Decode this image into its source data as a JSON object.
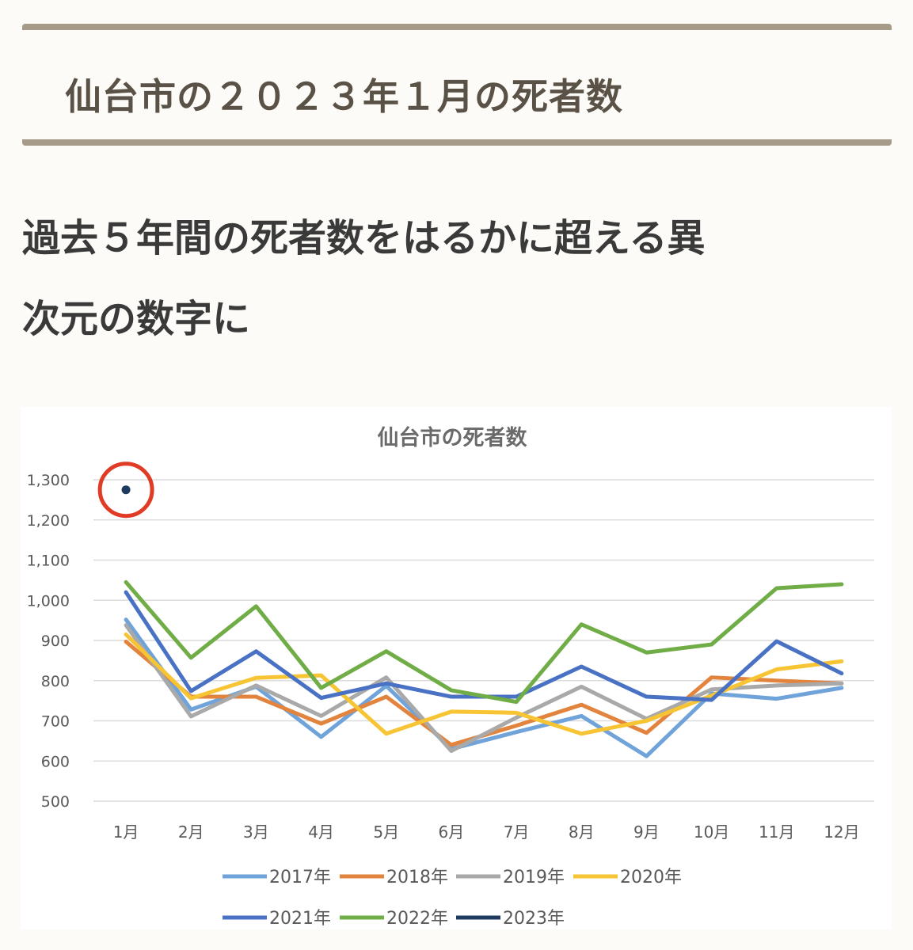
{
  "heading": {
    "title": "仙台市の２０２３年１月の死者数"
  },
  "lead": {
    "line1": "過去５年間の死者数をはるかに超える異",
    "line2": "次元の数字に"
  },
  "colors": {
    "2017年": "#6fa3d9",
    "2018年": "#e2843d",
    "2019年": "#a9a9a9",
    "2020年": "#f7c433",
    "2021年": "#4a72c4",
    "2022年": "#71ad47",
    "2023年": "#1f3a5f",
    "highlight": "#e03b24"
  },
  "chart_data": {
    "type": "line",
    "title": "仙台市の死者数",
    "categories": [
      "1月",
      "2月",
      "3月",
      "4月",
      "5月",
      "6月",
      "7月",
      "8月",
      "9月",
      "10月",
      "11月",
      "12月"
    ],
    "yticks": [
      "1,300",
      "1,200",
      "1,100",
      "1,000",
      "900",
      "800",
      "700",
      "600",
      "500"
    ],
    "ylim": [
      500,
      1300
    ],
    "grid": true,
    "legend_position": "bottom",
    "series": [
      {
        "name": "2017年",
        "values": [
          952,
          728,
          785,
          660,
          787,
          630,
          672,
          712,
          612,
          768,
          755,
          782
        ]
      },
      {
        "name": "2018年",
        "values": [
          897,
          760,
          760,
          693,
          760,
          640,
          688,
          740,
          670,
          808,
          800,
          793
        ]
      },
      {
        "name": "2019年",
        "values": [
          938,
          711,
          788,
          712,
          808,
          625,
          708,
          785,
          705,
          778,
          788,
          793
        ]
      },
      {
        "name": "2020年",
        "values": [
          915,
          756,
          807,
          813,
          668,
          723,
          720,
          668,
          700,
          763,
          828,
          848
        ]
      },
      {
        "name": "2021年",
        "values": [
          1020,
          774,
          873,
          757,
          793,
          760,
          760,
          835,
          760,
          752,
          898,
          818
        ]
      },
      {
        "name": "2022年",
        "values": [
          1045,
          857,
          985,
          782,
          873,
          776,
          747,
          940,
          870,
          890,
          1030,
          1040
        ]
      },
      {
        "name": "2023年",
        "values": [
          1275,
          null,
          null,
          null,
          null,
          null,
          null,
          null,
          null,
          null,
          null,
          null
        ]
      }
    ]
  }
}
